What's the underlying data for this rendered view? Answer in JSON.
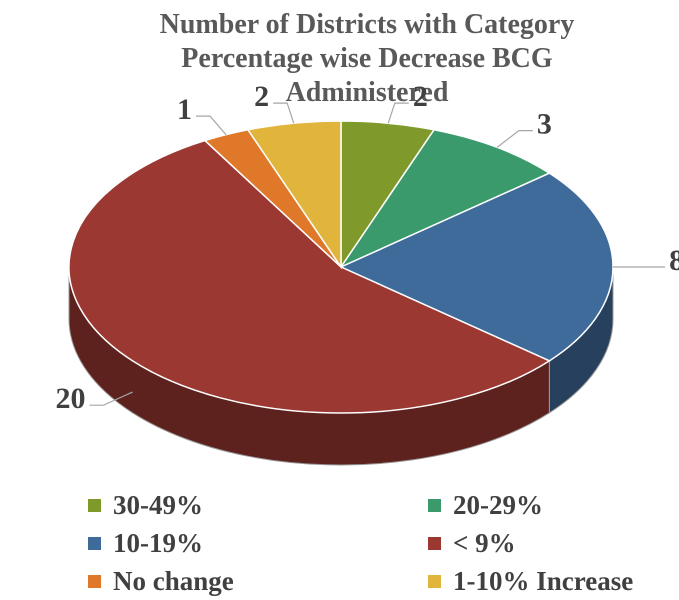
{
  "chart_data": {
    "type": "pie3d",
    "title": "Number of Districts with Category Percentage wise Decrease BCG Administered",
    "categories": [
      "30-49%",
      "20-29%",
      "10-19%",
      "< 9%",
      "No change",
      "1-10% Increase"
    ],
    "values": [
      2,
      3,
      8,
      20,
      1,
      2
    ],
    "colors": [
      "#7f9a2b",
      "#3a9a6c",
      "#3f6b9b",
      "#9c3832",
      "#e0782a",
      "#e1b53c"
    ]
  }
}
